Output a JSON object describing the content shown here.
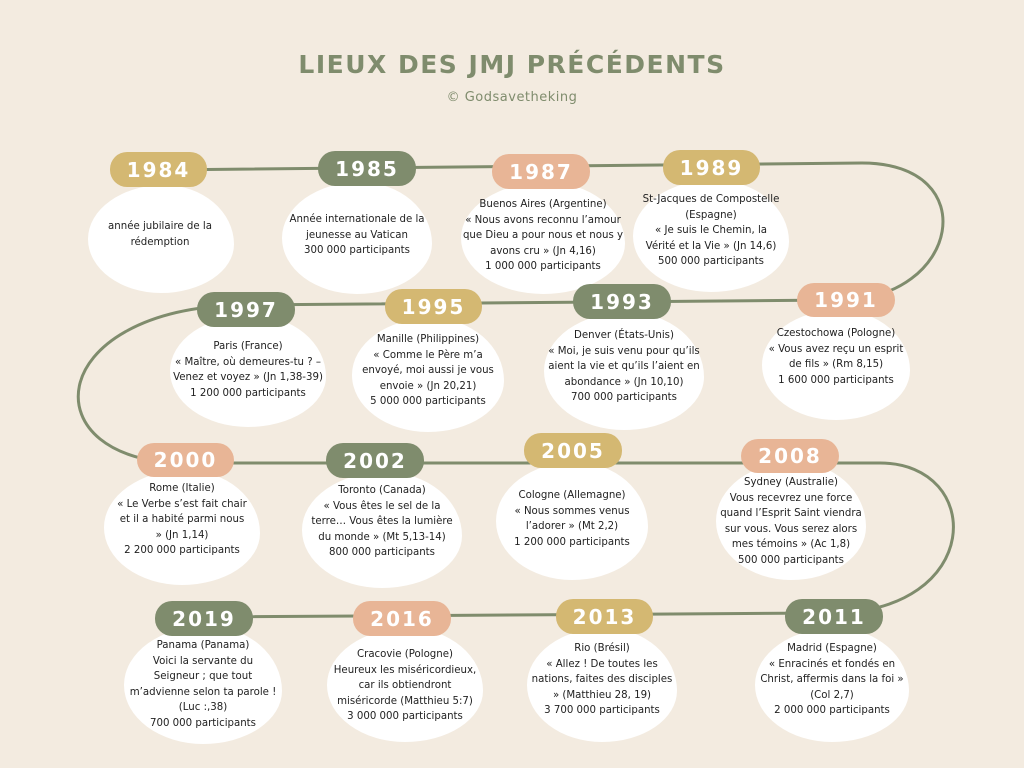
{
  "title": "LIEUX DES JMJ PRÉCÉDENTS",
  "subtitle": "© Godsavetheking",
  "events": [
    {
      "id": "1984",
      "year": "1984",
      "color": "gold",
      "text": "année jubilaire de la\nrédemption"
    },
    {
      "id": "1985",
      "year": "1985",
      "color": "sage",
      "text": "Année internationale de la\njeunesse au Vatican\n300 000 participants"
    },
    {
      "id": "1987",
      "year": "1987",
      "color": "peach",
      "text": "Buenos Aires (Argentine)\n« Nous avons reconnu l’amour\nque Dieu a pour nous et nous y\navons cru » (Jn 4,16)\n1 000 000 participants"
    },
    {
      "id": "1989",
      "year": "1989",
      "color": "gold",
      "text": "St-Jacques de Compostelle\n(Espagne)\n« Je suis le Chemin, la\nVérité et la Vie » (Jn 14,6)\n500 000 participants"
    },
    {
      "id": "1991",
      "year": "1991",
      "color": "peach",
      "text": "Czestochowa (Pologne)\n« Vous avez reçu un esprit\nde fils » (Rm 8,15)\n1 600 000 participants"
    },
    {
      "id": "1993",
      "year": "1993",
      "color": "sage",
      "text": "Denver (États-Unis)\n« Moi, je suis venu pour qu’ils\naient la vie et qu’ils l’aient en\nabondance » (Jn 10,10)\n700 000 participants"
    },
    {
      "id": "1995",
      "year": "1995",
      "color": "gold",
      "text": "Manille (Philippines)\n« Comme le Père m’a\nenvoyé, moi aussi je vous\nenvoie » (Jn 20,21)\n5 000 000 participants"
    },
    {
      "id": "1997",
      "year": "1997",
      "color": "sage",
      "text": "Paris (France)\n« Maître, où demeures-tu ? –\nVenez et voyez » (Jn 1,38-39)\n1 200 000 participants"
    },
    {
      "id": "2000",
      "year": "2000",
      "color": "peach",
      "text": "Rome (Italie)\n« Le Verbe s’est fait chair\net il a habité parmi nous\n» (Jn 1,14)\n2 200 000 participants"
    },
    {
      "id": "2002",
      "year": "2002",
      "color": "sage",
      "text": "Toronto (Canada)\n« Vous êtes le sel de la\nterre… Vous êtes la lumière\ndu monde » (Mt 5,13-14)\n800 000 participants"
    },
    {
      "id": "2005",
      "year": "2005",
      "color": "gold",
      "text": "Cologne (Allemagne)\n« Nous sommes venus\nl’adorer » (Mt 2,2)\n1 200 000 participants"
    },
    {
      "id": "2008",
      "year": "2008",
      "color": "peach",
      "text": "Sydney (Australie)\nVous recevrez une force\nquand l’Esprit Saint viendra\nsur vous. Vous serez alors\nmes témoins » (Ac 1,8)\n500 000 participants"
    },
    {
      "id": "2011",
      "year": "2011",
      "color": "sage",
      "text": "Madrid (Espagne)\n« Enracinés et fondés en\nChrist, affermis dans la foi »\n(Col 2,7)\n2 000 000 participants"
    },
    {
      "id": "2013",
      "year": "2013",
      "color": "gold",
      "text": "Rio (Brésil)\n« Allez ! De toutes les\nnations, faites des disciples\n» (Matthieu 28, 19)\n3 700 000 participants"
    },
    {
      "id": "2016",
      "year": "2016",
      "color": "peach",
      "text": "Cracovie (Pologne)\nHeureux les miséricordieux,\ncar ils obtiendront\nmiséricorde (Matthieu 5:7)\n3 000 000 participants"
    },
    {
      "id": "2019",
      "year": "2019",
      "color": "sage",
      "text": "Panama (Panama)\nVoici la servante du\nSeigneur ; que tout\nm’advienne selon ta parole !\n(Luc :,38)\n700 000 participants"
    }
  ]
}
